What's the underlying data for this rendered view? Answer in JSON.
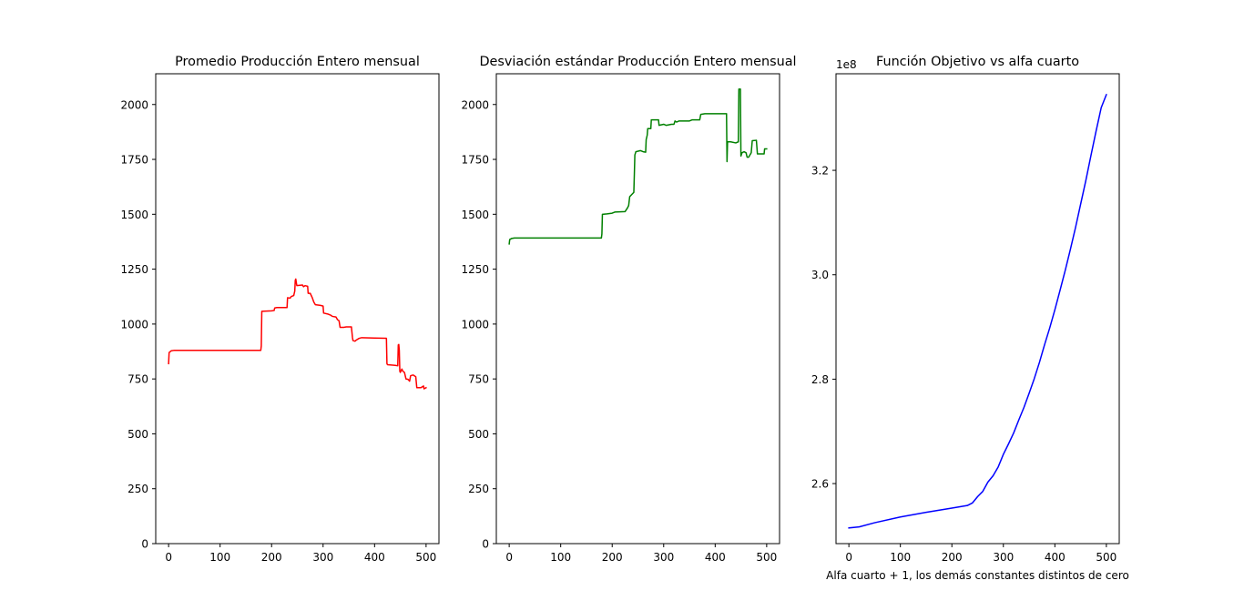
{
  "chart_data": [
    {
      "type": "line",
      "title": "Promedio Producción Entero mensual",
      "xlabel": "",
      "ylabel": "",
      "xlim": [
        -25,
        525
      ],
      "ylim": [
        0,
        2140
      ],
      "xticks": [
        0,
        100,
        200,
        300,
        400,
        500
      ],
      "yticks": [
        0,
        250,
        500,
        750,
        1000,
        1250,
        1500,
        1750,
        2000
      ],
      "grid": false,
      "series": [
        {
          "color": "#ff0000",
          "points": [
            [
              0,
              820
            ],
            [
              1,
              870
            ],
            [
              5,
              878
            ],
            [
              10,
              880
            ],
            [
              50,
              880
            ],
            [
              100,
              880
            ],
            [
              150,
              880
            ],
            [
              179,
              880
            ],
            [
              180,
              900
            ],
            [
              181,
              1058
            ],
            [
              200,
              1060
            ],
            [
              205,
              1062
            ],
            [
              206,
              1073
            ],
            [
              210,
              1075
            ],
            [
              230,
              1075
            ],
            [
              231,
              1120
            ],
            [
              236,
              1118
            ],
            [
              238,
              1125
            ],
            [
              243,
              1130
            ],
            [
              245,
              1150
            ],
            [
              246,
              1200
            ],
            [
              247,
              1205
            ],
            [
              249,
              1175
            ],
            [
              260,
              1178
            ],
            [
              262,
              1170
            ],
            [
              265,
              1175
            ],
            [
              270,
              1172
            ],
            [
              271,
              1140
            ],
            [
              275,
              1140
            ],
            [
              279,
              1120
            ],
            [
              282,
              1100
            ],
            [
              285,
              1088
            ],
            [
              295,
              1085
            ],
            [
              300,
              1082
            ],
            [
              301,
              1050
            ],
            [
              310,
              1045
            ],
            [
              315,
              1040
            ],
            [
              318,
              1035
            ],
            [
              325,
              1032
            ],
            [
              328,
              1020
            ],
            [
              331,
              1015
            ],
            [
              333,
              985
            ],
            [
              340,
              985
            ],
            [
              345,
              987
            ],
            [
              355,
              987
            ],
            [
              357,
              940
            ],
            [
              358,
              925
            ],
            [
              362,
              922
            ],
            [
              365,
              928
            ],
            [
              370,
              935
            ],
            [
              375,
              938
            ],
            [
              400,
              936
            ],
            [
              423,
              935
            ],
            [
              424,
              820
            ],
            [
              425,
              815
            ],
            [
              440,
              812
            ],
            [
              445,
              810
            ],
            [
              446,
              905
            ],
            [
              447,
              907
            ],
            [
              448,
              880
            ],
            [
              449,
              785
            ],
            [
              450,
              780
            ],
            [
              453,
              795
            ],
            [
              455,
              785
            ],
            [
              458,
              780
            ],
            [
              461,
              750
            ],
            [
              465,
              748
            ],
            [
              468,
              740
            ],
            [
              470,
              765
            ],
            [
              475,
              768
            ],
            [
              480,
              760
            ],
            [
              482,
              710
            ],
            [
              490,
              710
            ],
            [
              495,
              718
            ],
            [
              496,
              705
            ],
            [
              500,
              710
            ]
          ]
        }
      ]
    },
    {
      "type": "line",
      "title": "Desviación estándar Producción Entero mensual",
      "xlabel": "",
      "ylabel": "",
      "xlim": [
        -25,
        525
      ],
      "ylim": [
        0,
        2140
      ],
      "xticks": [
        0,
        100,
        200,
        300,
        400,
        500
      ],
      "yticks": [
        0,
        250,
        500,
        750,
        1000,
        1250,
        1500,
        1750,
        2000
      ],
      "grid": false,
      "series": [
        {
          "color": "#008000",
          "points": [
            [
              0,
              1365
            ],
            [
              1,
              1385
            ],
            [
              5,
              1390
            ],
            [
              10,
              1392
            ],
            [
              50,
              1392
            ],
            [
              100,
              1392
            ],
            [
              150,
              1392
            ],
            [
              179,
              1392
            ],
            [
              180,
              1410
            ],
            [
              181,
              1500
            ],
            [
              190,
              1502
            ],
            [
              200,
              1505
            ],
            [
              205,
              1510
            ],
            [
              225,
              1512
            ],
            [
              230,
              1530
            ],
            [
              232,
              1540
            ],
            [
              234,
              1580
            ],
            [
              238,
              1590
            ],
            [
              242,
              1600
            ],
            [
              243,
              1680
            ],
            [
              244,
              1770
            ],
            [
              246,
              1785
            ],
            [
              255,
              1790
            ],
            [
              260,
              1785
            ],
            [
              265,
              1783
            ],
            [
              266,
              1840
            ],
            [
              268,
              1860
            ],
            [
              269,
              1890
            ],
            [
              275,
              1890
            ],
            [
              276,
              1930
            ],
            [
              290,
              1930
            ],
            [
              291,
              1905
            ],
            [
              300,
              1910
            ],
            [
              305,
              1905
            ],
            [
              315,
              1910
            ],
            [
              320,
              1910
            ],
            [
              322,
              1925
            ],
            [
              325,
              1920
            ],
            [
              330,
              1925
            ],
            [
              350,
              1925
            ],
            [
              355,
              1930
            ],
            [
              370,
              1930
            ],
            [
              372,
              1955
            ],
            [
              380,
              1958
            ],
            [
              400,
              1958
            ],
            [
              422,
              1958
            ],
            [
              423,
              1740
            ],
            [
              424,
              1830
            ],
            [
              430,
              1830
            ],
            [
              440,
              1825
            ],
            [
              445,
              1830
            ],
            [
              446,
              2070
            ],
            [
              449,
              2070
            ],
            [
              450,
              1765
            ],
            [
              452,
              1780
            ],
            [
              456,
              1785
            ],
            [
              460,
              1780
            ],
            [
              462,
              1760
            ],
            [
              465,
              1760
            ],
            [
              470,
              1780
            ],
            [
              472,
              1835
            ],
            [
              480,
              1837
            ],
            [
              482,
              1775
            ],
            [
              495,
              1775
            ],
            [
              496,
              1798
            ],
            [
              500,
              1798
            ]
          ]
        }
      ]
    },
    {
      "type": "line",
      "title": "Función Objetivo vs alfa cuarto",
      "xlabel": "Alfa cuarto + 1, los demás constantes distintos de cero",
      "ylabel": "",
      "y_offset_label": "1e8",
      "xlim": [
        -25,
        525
      ],
      "ylim": [
        2.485,
        3.385
      ],
      "xticks": [
        0,
        100,
        200,
        300,
        400,
        500
      ],
      "yticks": [
        2.6,
        2.8,
        3.0,
        3.2
      ],
      "grid": false,
      "series": [
        {
          "color": "#0000ff",
          "points": [
            [
              0,
              2.515
            ],
            [
              20,
              2.517
            ],
            [
              50,
              2.525
            ],
            [
              100,
              2.536
            ],
            [
              150,
              2.545
            ],
            [
              200,
              2.553
            ],
            [
              230,
              2.558
            ],
            [
              240,
              2.563
            ],
            [
              250,
              2.575
            ],
            [
              260,
              2.585
            ],
            [
              270,
              2.603
            ],
            [
              280,
              2.615
            ],
            [
              290,
              2.632
            ],
            [
              300,
              2.656
            ],
            [
              310,
              2.676
            ],
            [
              320,
              2.697
            ],
            [
              330,
              2.722
            ],
            [
              340,
              2.746
            ],
            [
              350,
              2.773
            ],
            [
              360,
              2.801
            ],
            [
              370,
              2.832
            ],
            [
              380,
              2.866
            ],
            [
              390,
              2.898
            ],
            [
              400,
              2.933
            ],
            [
              410,
              2.97
            ],
            [
              420,
              3.008
            ],
            [
              430,
              3.048
            ],
            [
              440,
              3.09
            ],
            [
              450,
              3.135
            ],
            [
              460,
              3.18
            ],
            [
              470,
              3.228
            ],
            [
              480,
              3.275
            ],
            [
              490,
              3.32
            ],
            [
              500,
              3.345
            ]
          ]
        }
      ]
    }
  ]
}
